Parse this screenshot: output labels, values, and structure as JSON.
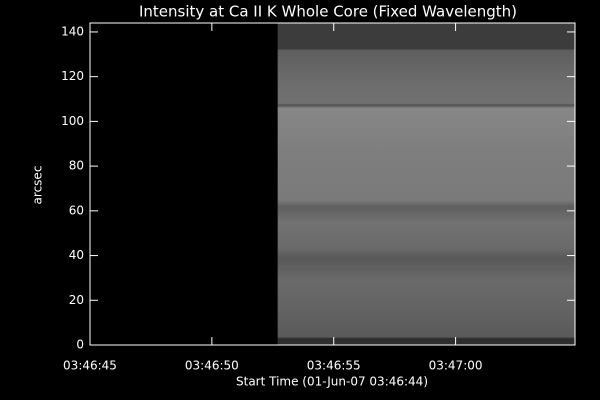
{
  "chart_data": {
    "type": "image",
    "title": "Intensity at Ca II K Whole Core (Fixed Wavelength)",
    "x_label": "Start Time (01-Jun-07 03:46:44)",
    "y_label": "arcsec",
    "xlim": [
      1,
      20.9
    ],
    "xticks": [
      {
        "value": 1,
        "label": "03:46:45"
      },
      {
        "value": 6,
        "label": "03:46:50"
      },
      {
        "value": 11,
        "label": "03:46:55"
      },
      {
        "value": 16,
        "label": "03:47:00"
      }
    ],
    "ylim": [
      0,
      144
    ],
    "yticks": [
      0,
      20,
      40,
      60,
      80,
      100,
      120,
      140
    ],
    "image_xlim": [
      8.7,
      20.9
    ]
  }
}
